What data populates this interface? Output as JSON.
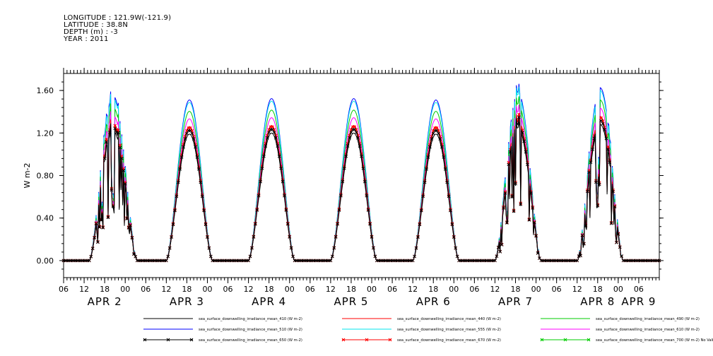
{
  "header": {
    "longitude": "LONGITUDE : 121.9W(-121.9)",
    "latitude": "LATITUDE : 38.8N",
    "depth": "DEPTH (m) : -3",
    "year": "YEAR : 2011"
  },
  "chart_data": {
    "type": "line",
    "title": "",
    "xlabel": "",
    "ylabel": "W m-2",
    "ylim": [
      -0.16,
      1.76
    ],
    "yticks": [
      "0.00",
      "0.40",
      "0.80",
      "1.20",
      "1.60"
    ],
    "xlim_hours": [
      0,
      174
    ],
    "x_tick_labels": [
      "06",
      "12",
      "18",
      "00",
      "06",
      "12",
      "18",
      "00",
      "06",
      "12",
      "18",
      "00",
      "06",
      "12",
      "18",
      "00",
      "06",
      "12",
      "18",
      "00",
      "06",
      "12",
      "18",
      "00",
      "06",
      "12",
      "18",
      "00",
      "06"
    ],
    "day_labels": [
      {
        "label": "APR 2",
        "at_hour": 12
      },
      {
        "label": "APR 3",
        "at_hour": 36
      },
      {
        "label": "APR 4",
        "at_hour": 60
      },
      {
        "label": "APR 5",
        "at_hour": 84
      },
      {
        "label": "APR 6",
        "at_hour": 108
      },
      {
        "label": "APR 7",
        "at_hour": 132
      },
      {
        "label": "APR 8",
        "at_hour": 156
      },
      {
        "label": "APR 9",
        "at_hour": 168
      }
    ],
    "days": [
      {
        "label": "APR 2",
        "start_hour": 7.5,
        "end_hour": 21.5,
        "peak": 1.22,
        "cloudy": true
      },
      {
        "label": "APR 3",
        "start_hour": 30.0,
        "end_hour": 43.5,
        "peak": 1.19,
        "cloudy": false
      },
      {
        "label": "APR 4",
        "start_hour": 54.0,
        "end_hour": 67.5,
        "peak": 1.2,
        "cloudy": false
      },
      {
        "label": "APR 5",
        "start_hour": 78.0,
        "end_hour": 91.5,
        "peak": 1.2,
        "cloudy": false
      },
      {
        "label": "APR 6",
        "start_hour": 102.0,
        "end_hour": 115.5,
        "peak": 1.19,
        "cloudy": false
      },
      {
        "label": "APR 7",
        "start_hour": 126.0,
        "end_hour": 139.5,
        "peak": 1.25,
        "cloudy": true
      },
      {
        "label": "APR 8",
        "start_hour": 150.0,
        "end_hour": 163.5,
        "peak": 1.28,
        "cloudy": true
      }
    ],
    "series": [
      {
        "name": "sea_surface_downwelling_irradiance_mean_410 (W m-2)",
        "color": "#000000",
        "scale": 1.0,
        "marker": "none"
      },
      {
        "name": "sea_surface_downwelling_irradiance_mean_440 (W m-2)",
        "color": "#ff0000",
        "scale": 1.06,
        "marker": "none"
      },
      {
        "name": "sea_surface_downwelling_irradiance_mean_490 (W m-2)",
        "color": "#00cc00",
        "scale": 1.18,
        "marker": "none"
      },
      {
        "name": "sea_surface_downwelling_irradiance_mean_510 (W m-2)",
        "color": "#0000ff",
        "scale": 1.27,
        "marker": "none"
      },
      {
        "name": "sea_surface_downwelling_irradiance_mean_555 (W m-2)",
        "color": "#00e5ee",
        "scale": 1.25,
        "marker": "none"
      },
      {
        "name": "sea_surface_downwelling_irradiance_mean_610 (W m-2)",
        "color": "#ff00ff",
        "scale": 1.12,
        "marker": "none"
      },
      {
        "name": "sea_surface_downwelling_irradiance_mean_650 (W m-2)",
        "color": "#000000",
        "scale": 1.03,
        "marker": "x"
      },
      {
        "name": "sea_surface_downwelling_irradiance_mean_670 (W m-2)",
        "color": "#ff0000",
        "scale": 1.05,
        "marker": "x"
      },
      {
        "name": "sea_surface_downwelling_irradiance_mean_700 (W m-2) No Valid Data",
        "color": "#00cc00",
        "scale": 0,
        "marker": "x"
      }
    ]
  }
}
